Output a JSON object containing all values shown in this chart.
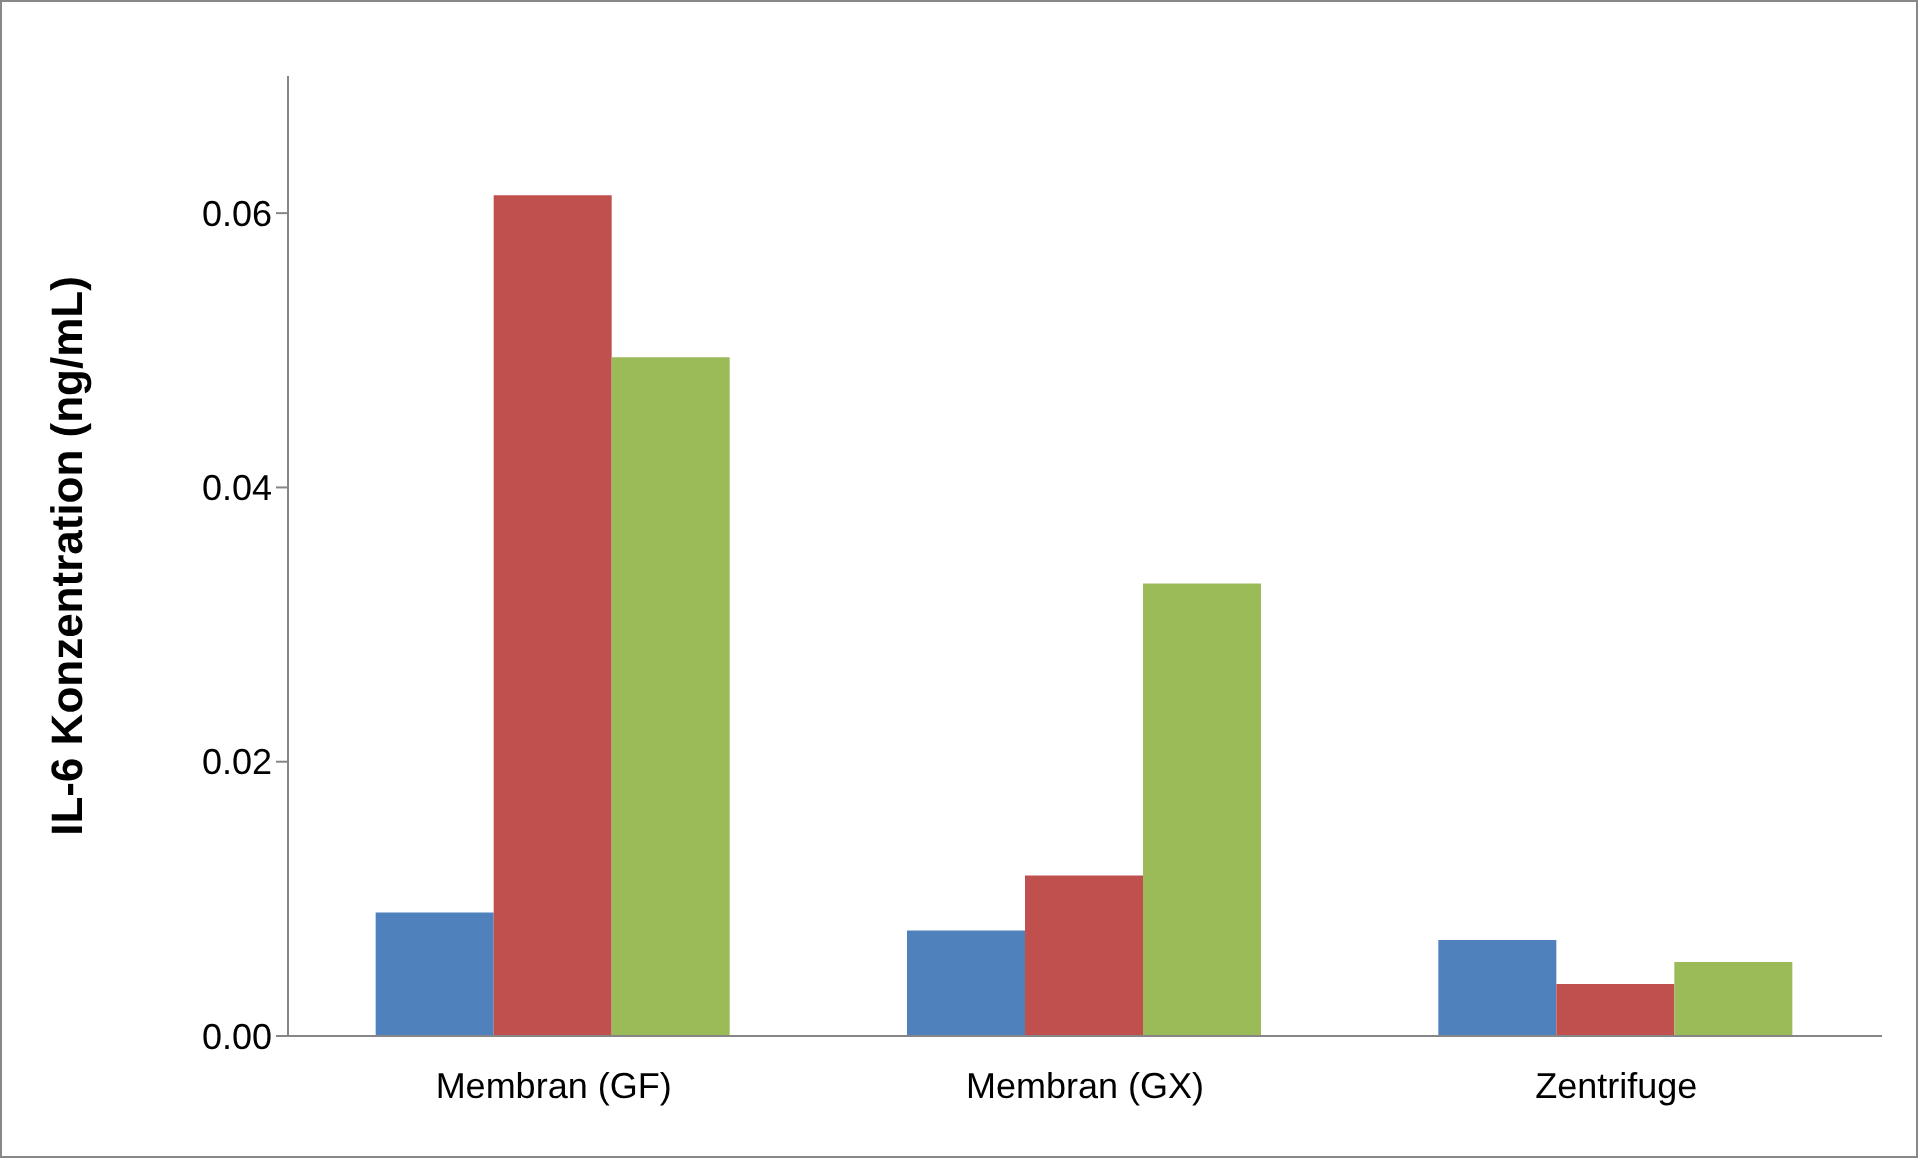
{
  "chart_data": {
    "type": "bar",
    "ylabel": "IL-6 Konzentration (ng/mL)",
    "categories": [
      "Membran (GF)",
      "Membran (GX)",
      "Zentrifuge"
    ],
    "series": [
      {
        "color": "#4f81bd",
        "values": [
          0.009,
          0.0077,
          0.007
        ]
      },
      {
        "color": "#c0504d",
        "values": [
          0.0613,
          0.0117,
          0.0038
        ]
      },
      {
        "color": "#9bbb59",
        "values": [
          0.0495,
          0.033,
          0.0054
        ]
      }
    ],
    "ylim": [
      0,
      0.07
    ],
    "yticks": [
      {
        "value": 0,
        "label": "0.00"
      },
      {
        "value": 0.02,
        "label": "0.02"
      },
      {
        "value": 0.04,
        "label": "0.04"
      },
      {
        "value": 0.06,
        "label": "0.06"
      }
    ],
    "grid": false,
    "legend": false
  }
}
